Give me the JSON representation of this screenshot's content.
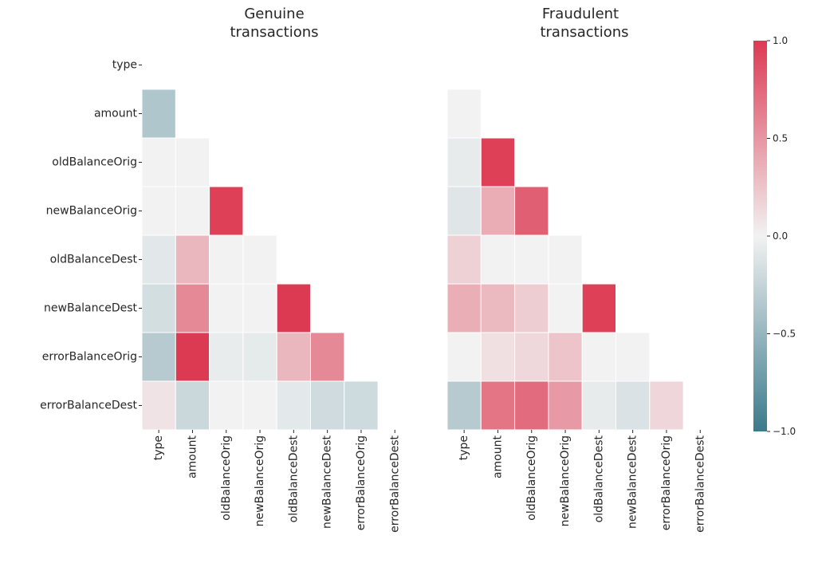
{
  "chart_data": {
    "type": "heatmap",
    "variables": [
      "type",
      "amount",
      "oldBalanceOrig",
      "newBalanceOrig",
      "oldBalanceDest",
      "newBalanceDest",
      "errorBalanceOrig",
      "errorBalanceDest"
    ],
    "mask": "upper-triangle-including-diagonal",
    "panels": [
      {
        "title_lines": [
          "Genuine",
          "transactions"
        ],
        "matrix": [
          [
            null,
            null,
            null,
            null,
            null,
            null,
            null,
            null
          ],
          [
            -0.37,
            null,
            null,
            null,
            null,
            null,
            null,
            null
          ],
          [
            0.0,
            0.0,
            null,
            null,
            null,
            null,
            null,
            null
          ],
          [
            0.0,
            0.0,
            0.97,
            null,
            null,
            null,
            null,
            null
          ],
          [
            -0.09,
            0.32,
            0.0,
            0.0,
            null,
            null,
            null,
            null
          ],
          [
            -0.17,
            0.57,
            0.0,
            0.0,
            1.0,
            null,
            null,
            null
          ],
          [
            -0.33,
            1.0,
            -0.05,
            -0.07,
            0.32,
            0.57,
            null,
            null
          ],
          [
            0.08,
            -0.22,
            0.0,
            0.0,
            -0.08,
            -0.19,
            -0.2,
            null
          ]
        ],
        "show_y_ticks": true
      },
      {
        "title_lines": [
          "Fraudulent",
          "transactions"
        ],
        "matrix": [
          [
            null,
            null,
            null,
            null,
            null,
            null,
            null,
            null
          ],
          [
            0.0,
            null,
            null,
            null,
            null,
            null,
            null,
            null
          ],
          [
            -0.06,
            0.97,
            null,
            null,
            null,
            null,
            null,
            null
          ],
          [
            -0.1,
            0.38,
            0.8,
            null,
            null,
            null,
            null,
            null
          ],
          [
            0.18,
            0.0,
            0.0,
            0.0,
            null,
            null,
            null,
            null
          ],
          [
            0.37,
            0.31,
            0.2,
            0.0,
            0.97,
            null,
            null,
            null
          ],
          [
            0.0,
            0.1,
            0.14,
            0.25,
            0.0,
            0.0,
            null,
            null
          ],
          [
            -0.33,
            0.68,
            0.73,
            0.48,
            -0.06,
            -0.13,
            0.15,
            null
          ]
        ],
        "show_y_ticks": false
      }
    ],
    "colorbar": {
      "range": [
        -1.0,
        1.0
      ],
      "ticks": [
        1.0,
        0.5,
        0.0,
        -0.5,
        -1.0
      ],
      "tick_labels": [
        "1.0",
        "0.5",
        "0.0",
        "−0.5",
        "−1.0"
      ],
      "low_color": "#3b7a8c",
      "mid_color": "#f2f2f2",
      "high_color": "#dc3a52"
    }
  }
}
